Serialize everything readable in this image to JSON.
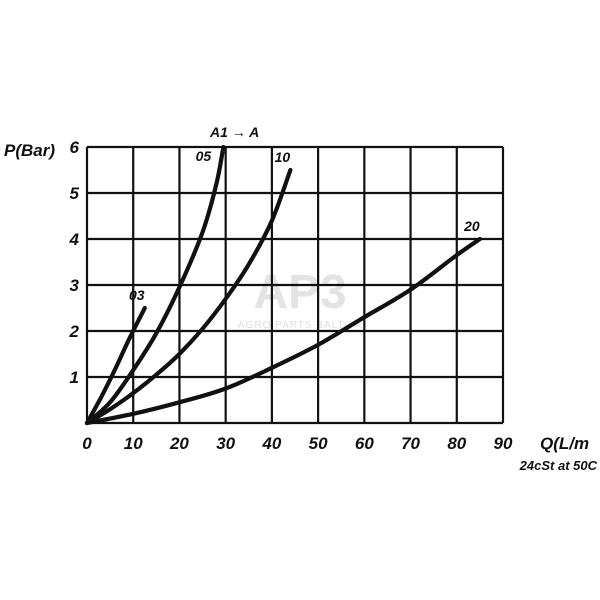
{
  "chart_data": {
    "type": "line",
    "xlabel": "Q(L/m",
    "ylabel": "P(Bar)",
    "note": "24cSt at 50C",
    "flow_direction": "A1 → A",
    "xlim": [
      0,
      90
    ],
    "ylim": [
      0,
      6
    ],
    "x_ticks": [
      "0",
      "10",
      "20",
      "30",
      "40",
      "50",
      "60",
      "70",
      "80",
      "90"
    ],
    "y_ticks": [
      "1",
      "2",
      "3",
      "4",
      "5",
      "6"
    ],
    "grid": true,
    "series": [
      {
        "name": "03",
        "x": [
          0,
          3,
          6,
          9,
          12.5
        ],
        "y": [
          0,
          0.55,
          1.15,
          1.8,
          2.5
        ]
      },
      {
        "name": "05",
        "x": [
          0,
          5,
          10,
          15,
          20,
          25,
          28,
          29.5
        ],
        "y": [
          0,
          0.45,
          1.15,
          1.95,
          2.95,
          4.15,
          5.2,
          6.0
        ]
      },
      {
        "name": "10",
        "x": [
          0,
          5,
          10,
          15,
          20,
          25,
          30,
          35,
          40,
          44
        ],
        "y": [
          0,
          0.3,
          0.65,
          1.05,
          1.5,
          2.05,
          2.7,
          3.45,
          4.4,
          5.5
        ]
      },
      {
        "name": "20",
        "x": [
          0,
          10,
          20,
          30,
          40,
          50,
          60,
          70,
          80,
          85
        ],
        "y": [
          0,
          0.2,
          0.45,
          0.75,
          1.2,
          1.7,
          2.3,
          2.9,
          3.65,
          4.0
        ]
      }
    ]
  },
  "watermark": {
    "logo_text": "AP3",
    "tagline": "AGRO PARTS BALTIJA"
  }
}
